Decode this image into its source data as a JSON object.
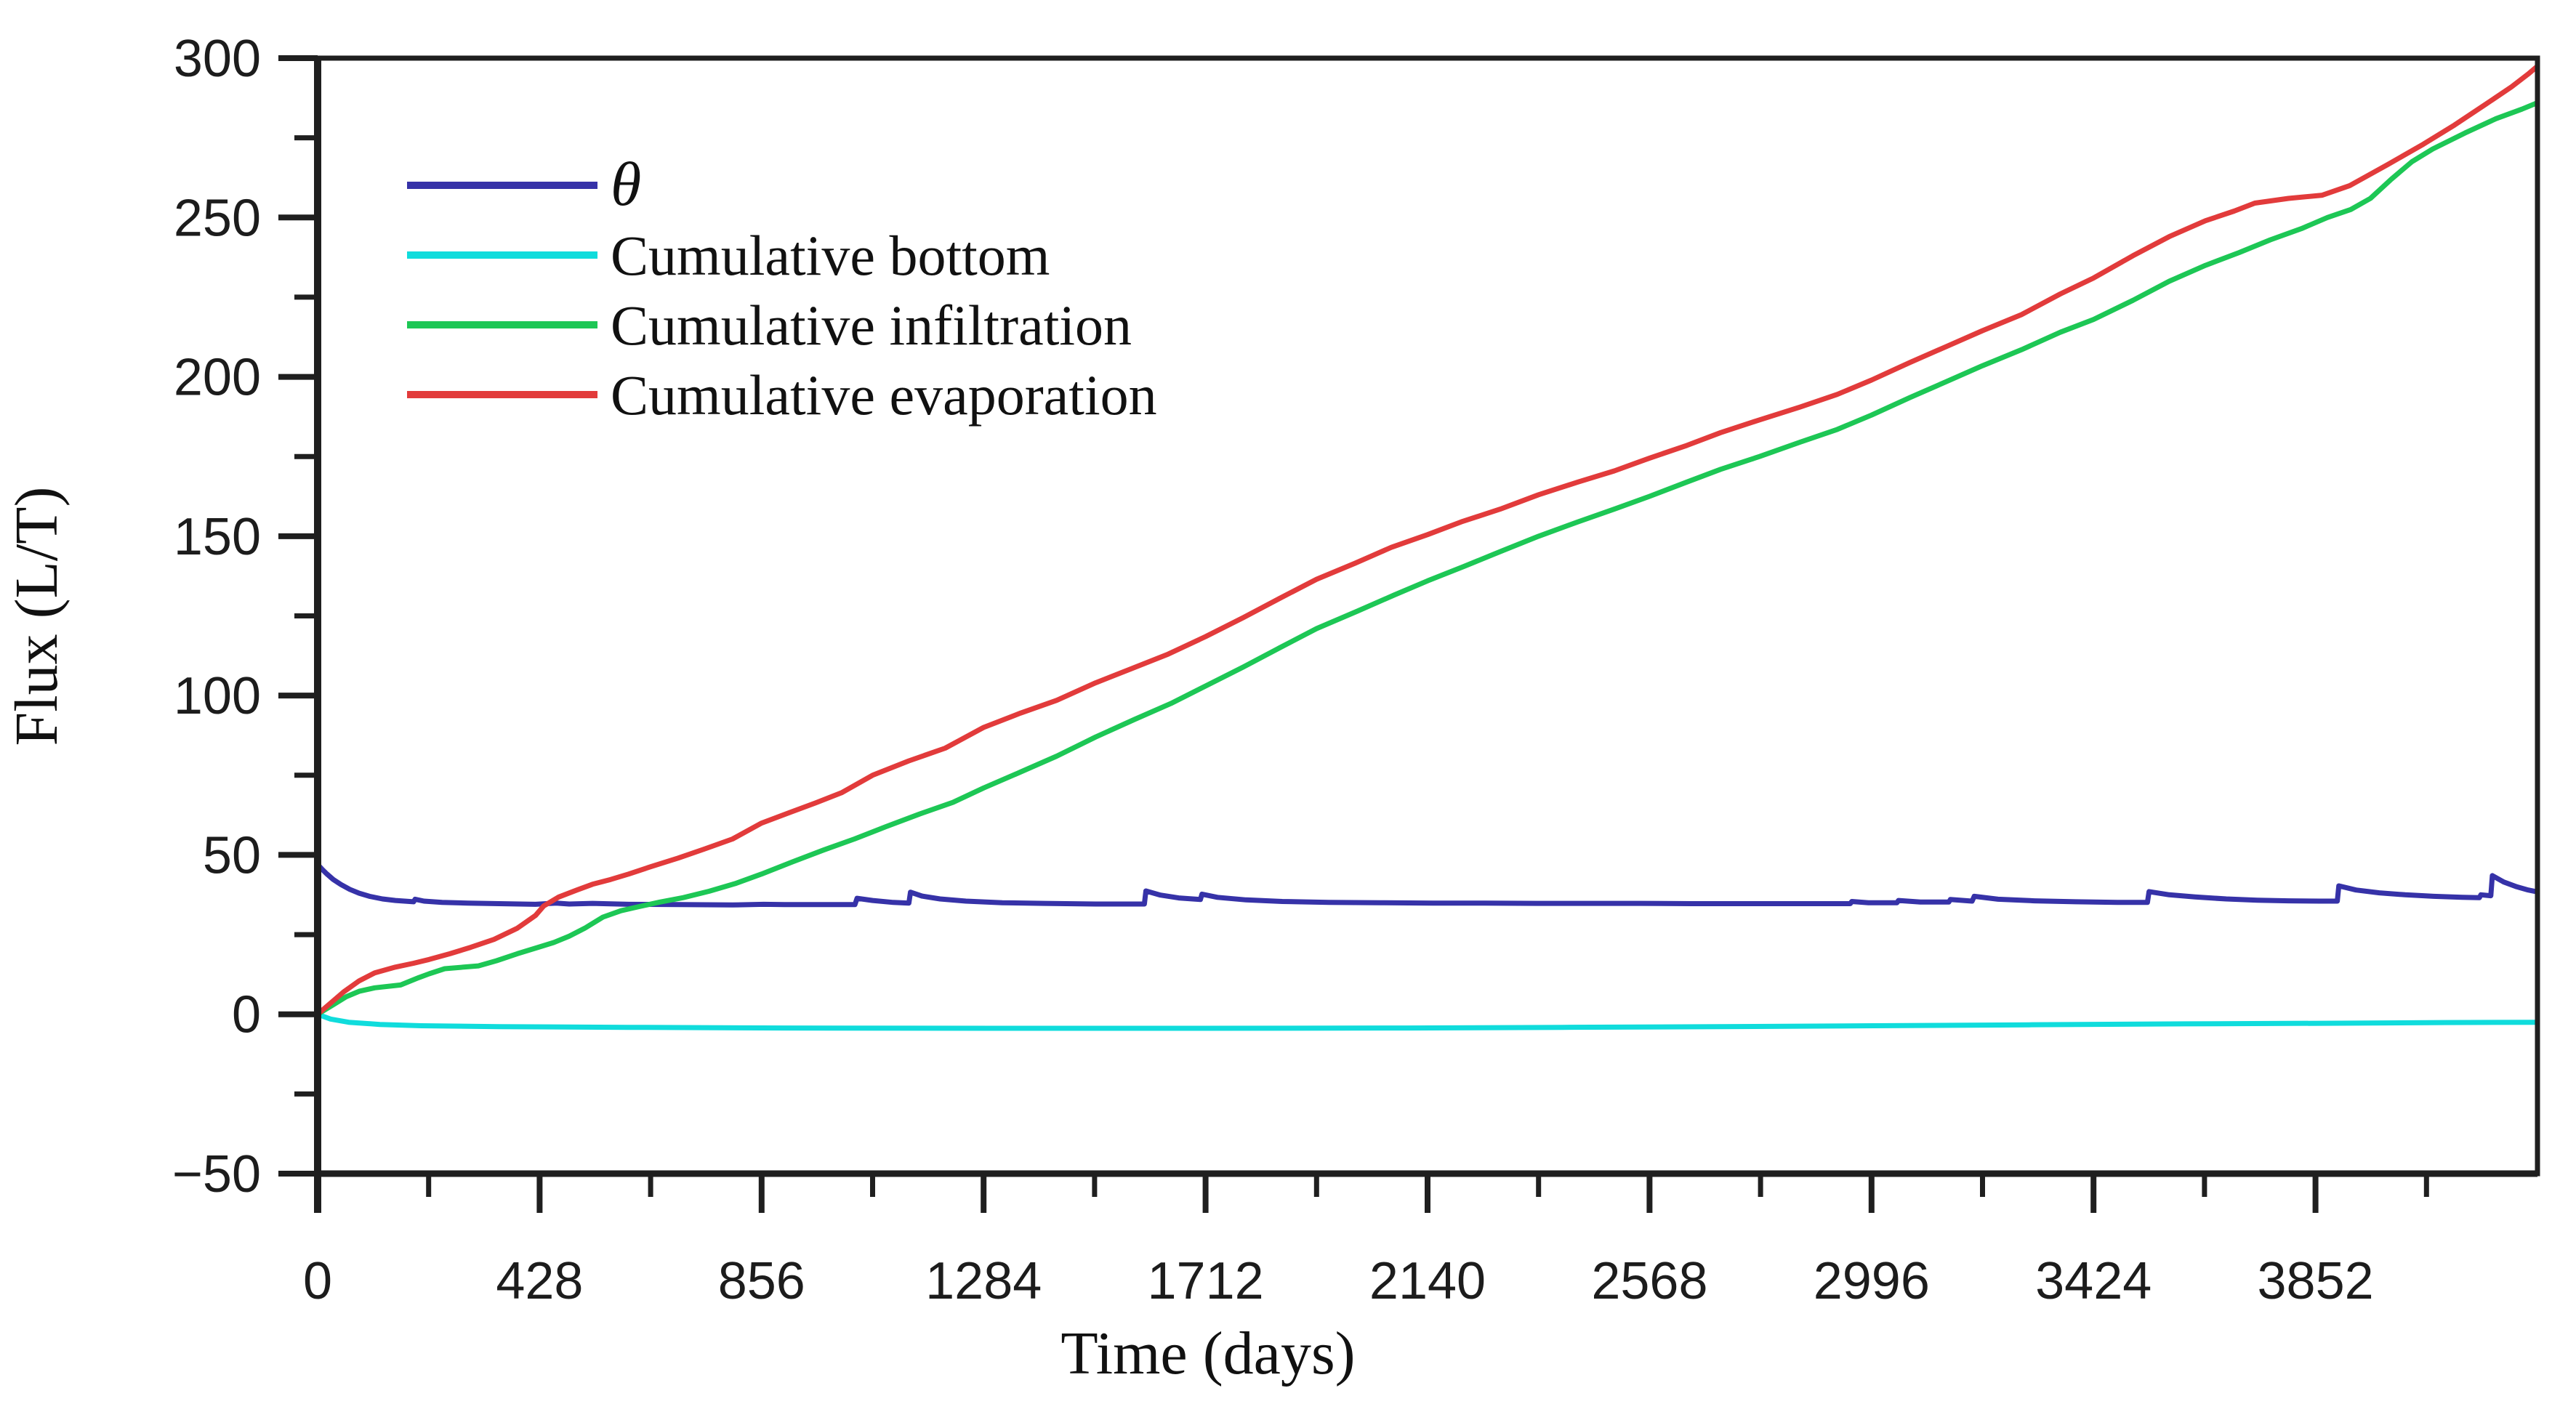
{
  "chart_data": {
    "type": "line",
    "title": "",
    "xlabel": "Time (days)",
    "ylabel": "Flux (L/T)",
    "xlim": [
      0,
      4280
    ],
    "ylim": [
      -50,
      300
    ],
    "grid": false,
    "legend_position": "upper-left-inside",
    "background_color": "#ffffff",
    "axis_color": "#1f1f1f",
    "x_major_ticks": [
      {
        "value": 0,
        "label": "0"
      },
      {
        "value": 428,
        "label": "428"
      },
      {
        "value": 856,
        "label": "856"
      },
      {
        "value": 1284,
        "label": "1284"
      },
      {
        "value": 1712,
        "label": "1712"
      },
      {
        "value": 2140,
        "label": "2140"
      },
      {
        "value": 2568,
        "label": "2568"
      },
      {
        "value": 2996,
        "label": "2996"
      },
      {
        "value": 3424,
        "label": "3424"
      },
      {
        "value": 3852,
        "label": "3852"
      }
    ],
    "x_minor_ticks": [
      214,
      642,
      1070,
      1498,
      1926,
      2354,
      2782,
      3210,
      3638,
      4066
    ],
    "y_major_ticks": [
      {
        "value": 300,
        "label": "300"
      },
      {
        "value": 250,
        "label": "250"
      },
      {
        "value": 200,
        "label": "200"
      },
      {
        "value": 150,
        "label": "150"
      },
      {
        "value": 100,
        "label": "100"
      },
      {
        "value": 50,
        "label": "50"
      },
      {
        "value": 0,
        "label": "0"
      },
      {
        "value": -50,
        "label": "−50"
      }
    ],
    "y_minor_ticks": [
      275,
      225,
      175,
      125,
      75,
      25,
      -25
    ],
    "series": [
      {
        "name": "θ",
        "label_style": "italic",
        "color": "#3632a8",
        "points": [
          [
            0,
            47
          ],
          [
            8,
            45.6
          ],
          [
            18,
            44
          ],
          [
            30,
            42.3
          ],
          [
            45,
            40.7
          ],
          [
            62,
            39.2
          ],
          [
            80,
            38
          ],
          [
            100,
            37
          ],
          [
            125,
            36.2
          ],
          [
            150,
            35.7
          ],
          [
            185,
            35.3
          ],
          [
            188,
            36.1
          ],
          [
            205,
            35.5
          ],
          [
            240,
            35.1
          ],
          [
            290,
            34.9
          ],
          [
            350,
            34.7
          ],
          [
            420,
            34.5
          ],
          [
            460,
            34.9
          ],
          [
            485,
            34.6
          ],
          [
            530,
            34.8
          ],
          [
            600,
            34.5
          ],
          [
            700,
            34.4
          ],
          [
            800,
            34.3
          ],
          [
            860,
            34.5
          ],
          [
            900,
            34.4
          ],
          [
            1000,
            34.4
          ],
          [
            1036,
            34.4
          ],
          [
            1040,
            36.4
          ],
          [
            1070,
            35.7
          ],
          [
            1110,
            35.1
          ],
          [
            1140,
            34.9
          ],
          [
            1143,
            38.3
          ],
          [
            1165,
            37.1
          ],
          [
            1200,
            36.2
          ],
          [
            1250,
            35.5
          ],
          [
            1320,
            35
          ],
          [
            1400,
            34.8
          ],
          [
            1500,
            34.6
          ],
          [
            1594,
            34.6
          ],
          [
            1597,
            38.7
          ],
          [
            1625,
            37.4
          ],
          [
            1660,
            36.5
          ],
          [
            1702,
            36
          ],
          [
            1705,
            37.7
          ],
          [
            1735,
            36.7
          ],
          [
            1790,
            35.9
          ],
          [
            1860,
            35.4
          ],
          [
            1950,
            35.1
          ],
          [
            2050,
            35
          ],
          [
            2150,
            34.9
          ],
          [
            2250,
            34.9
          ],
          [
            2350,
            34.8
          ],
          [
            2450,
            34.8
          ],
          [
            2550,
            34.8
          ],
          [
            2650,
            34.7
          ],
          [
            2750,
            34.7
          ],
          [
            2850,
            34.7
          ],
          [
            2955,
            34.7
          ],
          [
            2958,
            35.4
          ],
          [
            2990,
            35
          ],
          [
            3045,
            35
          ],
          [
            3048,
            35.7
          ],
          [
            3090,
            35.2
          ],
          [
            3145,
            35.2
          ],
          [
            3148,
            36
          ],
          [
            3190,
            35.5
          ],
          [
            3194,
            37
          ],
          [
            3240,
            36.1
          ],
          [
            3310,
            35.6
          ],
          [
            3390,
            35.3
          ],
          [
            3470,
            35.1
          ],
          [
            3528,
            35.1
          ],
          [
            3531,
            38.5
          ],
          [
            3570,
            37.5
          ],
          [
            3620,
            36.8
          ],
          [
            3680,
            36.2
          ],
          [
            3740,
            35.8
          ],
          [
            3800,
            35.6
          ],
          [
            3860,
            35.5
          ],
          [
            3894,
            35.5
          ],
          [
            3897,
            40.3
          ],
          [
            3930,
            39
          ],
          [
            3975,
            38.1
          ],
          [
            4025,
            37.5
          ],
          [
            4080,
            37
          ],
          [
            4135,
            36.7
          ],
          [
            4168,
            36.6
          ],
          [
            4171,
            37.5
          ],
          [
            4190,
            37.2
          ],
          [
            4193,
            43.5
          ],
          [
            4215,
            41.5
          ],
          [
            4240,
            40
          ],
          [
            4262,
            39
          ],
          [
            4280,
            38.4
          ]
        ]
      },
      {
        "name": "Cumulative bottom",
        "label_style": "normal",
        "color": "#10dcdc",
        "points": [
          [
            0,
            0
          ],
          [
            25,
            -1.5
          ],
          [
            60,
            -2.5
          ],
          [
            120,
            -3.2
          ],
          [
            200,
            -3.6
          ],
          [
            350,
            -3.9
          ],
          [
            600,
            -4.1
          ],
          [
            900,
            -4.3
          ],
          [
            1300,
            -4.4
          ],
          [
            1700,
            -4.4
          ],
          [
            2100,
            -4.3
          ],
          [
            2400,
            -4.1
          ],
          [
            2700,
            -3.9
          ],
          [
            3000,
            -3.6
          ],
          [
            3300,
            -3.3
          ],
          [
            3600,
            -3.0
          ],
          [
            3900,
            -2.8
          ],
          [
            4100,
            -2.6
          ],
          [
            4280,
            -2.5
          ]
        ]
      },
      {
        "name": "Cumulative infiltration",
        "label_style": "normal",
        "color": "#1dc755",
        "points": [
          [
            0,
            0
          ],
          [
            30,
            3
          ],
          [
            55,
            5.5
          ],
          [
            80,
            7.2
          ],
          [
            110,
            8.3
          ],
          [
            160,
            9.2
          ],
          [
            195,
            11.5
          ],
          [
            215,
            12.7
          ],
          [
            245,
            14.3
          ],
          [
            310,
            15.2
          ],
          [
            345,
            16.8
          ],
          [
            385,
            19
          ],
          [
            425,
            21
          ],
          [
            455,
            22.5
          ],
          [
            485,
            24.5
          ],
          [
            515,
            27
          ],
          [
            550,
            30.5
          ],
          [
            585,
            32.5
          ],
          [
            620,
            33.8
          ],
          [
            660,
            35.2
          ],
          [
            705,
            36.6
          ],
          [
            755,
            38.6
          ],
          [
            805,
            41
          ],
          [
            856,
            44
          ],
          [
            915,
            47.8
          ],
          [
            975,
            51.5
          ],
          [
            1035,
            55
          ],
          [
            1095,
            58.8
          ],
          [
            1160,
            62.8
          ],
          [
            1225,
            66.5
          ],
          [
            1284,
            71
          ],
          [
            1355,
            76
          ],
          [
            1425,
            81
          ],
          [
            1500,
            87
          ],
          [
            1575,
            92.5
          ],
          [
            1645,
            97.5
          ],
          [
            1712,
            103
          ],
          [
            1785,
            109
          ],
          [
            1855,
            115
          ],
          [
            1926,
            121
          ],
          [
            2005,
            126.5
          ],
          [
            2075,
            131.5
          ],
          [
            2140,
            136
          ],
          [
            2210,
            140.5
          ],
          [
            2285,
            145.5
          ],
          [
            2354,
            150
          ],
          [
            2430,
            154.5
          ],
          [
            2500,
            158.5
          ],
          [
            2568,
            162.5
          ],
          [
            2640,
            167
          ],
          [
            2705,
            171
          ],
          [
            2780,
            175
          ],
          [
            2858,
            179.5
          ],
          [
            2930,
            183.5
          ],
          [
            2996,
            188
          ],
          [
            3070,
            193.5
          ],
          [
            3140,
            198.5
          ],
          [
            3210,
            203.5
          ],
          [
            3285,
            208.5
          ],
          [
            3360,
            214
          ],
          [
            3424,
            218
          ],
          [
            3500,
            224
          ],
          [
            3570,
            230
          ],
          [
            3640,
            235
          ],
          [
            3705,
            239
          ],
          [
            3765,
            243
          ],
          [
            3825,
            246.5
          ],
          [
            3875,
            250
          ],
          [
            3920,
            252.5
          ],
          [
            3958,
            256
          ],
          [
            3998,
            262
          ],
          [
            4038,
            267.5
          ],
          [
            4078,
            271.5
          ],
          [
            4140,
            276.5
          ],
          [
            4200,
            281
          ],
          [
            4250,
            284
          ],
          [
            4280,
            286
          ]
        ]
      },
      {
        "name": "Cumulative evaporation",
        "label_style": "normal",
        "color": "#e23b3b",
        "points": [
          [
            0,
            0
          ],
          [
            25,
            3.5
          ],
          [
            50,
            7
          ],
          [
            80,
            10.5
          ],
          [
            110,
            13
          ],
          [
            150,
            14.8
          ],
          [
            185,
            16
          ],
          [
            215,
            17.2
          ],
          [
            255,
            19
          ],
          [
            295,
            21
          ],
          [
            340,
            23.5
          ],
          [
            385,
            27
          ],
          [
            420,
            31
          ],
          [
            436,
            34
          ],
          [
            465,
            36.8
          ],
          [
            500,
            39
          ],
          [
            530,
            40.8
          ],
          [
            565,
            42.3
          ],
          [
            600,
            44
          ],
          [
            642,
            46.3
          ],
          [
            695,
            49
          ],
          [
            745,
            51.8
          ],
          [
            800,
            55
          ],
          [
            856,
            60
          ],
          [
            910,
            63.3
          ],
          [
            960,
            66.3
          ],
          [
            1010,
            69.5
          ],
          [
            1070,
            75
          ],
          [
            1140,
            79.5
          ],
          [
            1210,
            83.5
          ],
          [
            1284,
            90
          ],
          [
            1355,
            94.5
          ],
          [
            1425,
            98.5
          ],
          [
            1500,
            104
          ],
          [
            1570,
            108.5
          ],
          [
            1640,
            113
          ],
          [
            1712,
            118.5
          ],
          [
            1785,
            124.5
          ],
          [
            1855,
            130.5
          ],
          [
            1926,
            136.5
          ],
          [
            2000,
            141.5
          ],
          [
            2070,
            146.5
          ],
          [
            2140,
            150.5
          ],
          [
            2205,
            154.5
          ],
          [
            2280,
            158.5
          ],
          [
            2354,
            163
          ],
          [
            2430,
            167
          ],
          [
            2500,
            170.5
          ],
          [
            2568,
            174.5
          ],
          [
            2640,
            178.5
          ],
          [
            2705,
            182.5
          ],
          [
            2780,
            186.5
          ],
          [
            2858,
            190.5
          ],
          [
            2930,
            194.5
          ],
          [
            2996,
            199
          ],
          [
            3070,
            204.5
          ],
          [
            3140,
            209.5
          ],
          [
            3210,
            214.5
          ],
          [
            3285,
            219.5
          ],
          [
            3360,
            226
          ],
          [
            3424,
            231
          ],
          [
            3500,
            238
          ],
          [
            3570,
            244
          ],
          [
            3640,
            249
          ],
          [
            3695,
            252
          ],
          [
            3735,
            254.5
          ],
          [
            3800,
            256
          ],
          [
            3865,
            257
          ],
          [
            3918,
            260
          ],
          [
            3990,
            266.5
          ],
          [
            4060,
            273
          ],
          [
            4120,
            279
          ],
          [
            4180,
            285.5
          ],
          [
            4230,
            291
          ],
          [
            4262,
            295
          ],
          [
            4280,
            297.5
          ]
        ]
      }
    ]
  }
}
